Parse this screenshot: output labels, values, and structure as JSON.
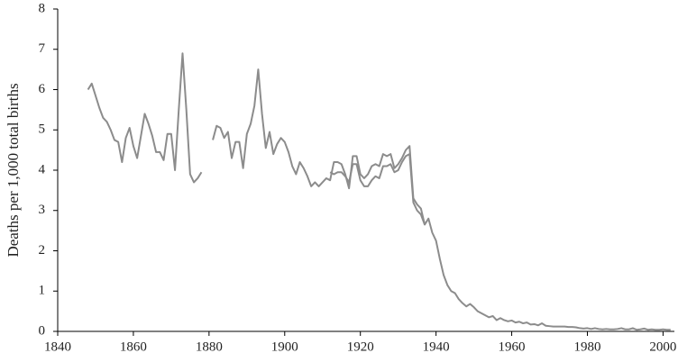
{
  "chart_data": {
    "type": "line",
    "ylabel": "Deaths per 1,000 total births",
    "xlim": [
      1840,
      2003
    ],
    "xticks": [
      1840,
      1860,
      1880,
      1900,
      1920,
      1940,
      1960,
      1980,
      2000
    ],
    "ylim": [
      0,
      8
    ],
    "yticks": [
      0,
      1,
      2,
      3,
      4,
      5,
      6,
      7,
      8
    ],
    "grid": false,
    "series": [
      {
        "color": "#8c8c8c",
        "x": [
          1848,
          1849,
          1850,
          1851,
          1852,
          1853,
          1854,
          1855,
          1856,
          1857,
          1858,
          1859,
          1860,
          1861,
          1862,
          1863,
          1864,
          1865,
          1866,
          1867,
          1868,
          1869,
          1870,
          1871,
          1872,
          1873,
          1874,
          1875,
          1876,
          1877,
          1878,
          1879,
          1880,
          1881,
          1882,
          1883,
          1884,
          1885,
          1886,
          1887,
          1888,
          1889,
          1890,
          1891,
          1892,
          1893,
          1894,
          1895,
          1896,
          1897,
          1898,
          1899,
          1900,
          1901,
          1902,
          1903,
          1904,
          1905,
          1906,
          1907,
          1908,
          1909,
          1910,
          1911,
          1912,
          1913,
          1914,
          1915,
          1916,
          1917,
          1918,
          1919,
          1920,
          1921,
          1922,
          1923,
          1924,
          1925,
          1926,
          1927,
          1928,
          1929,
          1930,
          1931,
          1932,
          1933,
          1934,
          1935,
          1936,
          1937,
          1938,
          1939,
          1940,
          1941,
          1942,
          1943,
          1944,
          1945,
          1946,
          1947,
          1948,
          1949,
          1950,
          1951,
          1952,
          1953,
          1954,
          1955,
          1956,
          1957,
          1958,
          1959,
          1960,
          1961,
          1962,
          1963,
          1964,
          1965,
          1966,
          1967,
          1968,
          1969,
          1970,
          1971,
          1972,
          1973,
          1974,
          1975,
          1976,
          1977,
          1978,
          1979,
          1980,
          1981,
          1982,
          1983,
          1984,
          1985,
          1986,
          1987,
          1988,
          1989,
          1990,
          1991,
          1992,
          1993,
          1994,
          1995,
          1996,
          1997,
          1998,
          1999,
          2000,
          2001,
          2002
        ],
        "values": [
          6.0,
          6.15,
          5.85,
          5.55,
          5.3,
          5.2,
          5.0,
          4.75,
          4.7,
          4.2,
          4.8,
          5.05,
          4.6,
          4.3,
          4.85,
          5.4,
          5.15,
          4.85,
          4.45,
          4.45,
          4.25,
          4.9,
          4.9,
          4.0,
          5.5,
          6.9,
          5.5,
          3.9,
          3.7,
          3.8,
          3.95,
          null,
          null,
          4.75,
          5.1,
          5.05,
          4.8,
          4.95,
          4.3,
          4.7,
          4.7,
          4.05,
          4.9,
          5.15,
          5.6,
          6.5,
          5.4,
          4.55,
          4.95,
          4.4,
          4.65,
          4.8,
          4.7,
          4.45,
          4.1,
          3.9,
          4.2,
          4.05,
          3.85,
          3.6,
          3.7,
          3.6,
          3.7,
          3.8,
          3.75,
          4.2,
          4.2,
          4.15,
          3.9,
          3.55,
          4.35,
          4.35,
          3.9,
          3.8,
          3.9,
          4.1,
          4.15,
          4.1,
          4.4,
          4.35,
          4.4,
          4.05,
          4.15,
          4.3,
          4.5,
          4.6,
          3.3,
          3.15,
          3.05,
          2.65,
          2.8,
          2.45,
          2.25,
          1.8,
          1.4,
          1.15,
          1.0,
          0.95,
          0.8,
          0.7,
          0.62,
          0.68,
          0.6,
          0.5,
          0.45,
          0.4,
          0.35,
          0.38,
          0.28,
          0.33,
          0.28,
          0.25,
          0.27,
          0.22,
          0.24,
          0.2,
          0.22,
          0.17,
          0.18,
          0.15,
          0.2,
          0.14,
          0.13,
          0.12,
          0.12,
          0.12,
          0.12,
          0.11,
          0.11,
          0.1,
          0.08,
          0.07,
          0.08,
          0.06,
          0.08,
          0.06,
          0.05,
          0.06,
          0.05,
          0.05,
          0.06,
          0.08,
          0.05,
          0.05,
          0.08,
          0.04,
          0.05,
          0.07,
          0.04,
          0.05,
          0.04,
          0.04,
          0.05,
          0.04,
          0.04
        ]
      },
      {
        "color": "#8c8c8c",
        "x": [
          1912,
          1913,
          1914,
          1915,
          1916,
          1917,
          1918,
          1919,
          1920,
          1921,
          1922,
          1923,
          1924,
          1925,
          1926,
          1927,
          1928,
          1929,
          1930,
          1931,
          1932,
          1933,
          1934,
          1935,
          1936,
          1937
        ],
        "values": [
          3.95,
          3.9,
          3.95,
          3.95,
          3.85,
          3.7,
          4.15,
          4.15,
          3.75,
          3.6,
          3.6,
          3.75,
          3.85,
          3.8,
          4.1,
          4.1,
          4.15,
          3.95,
          4.0,
          4.2,
          4.35,
          4.4,
          3.2,
          3.0,
          2.9,
          2.65
        ]
      }
    ]
  }
}
